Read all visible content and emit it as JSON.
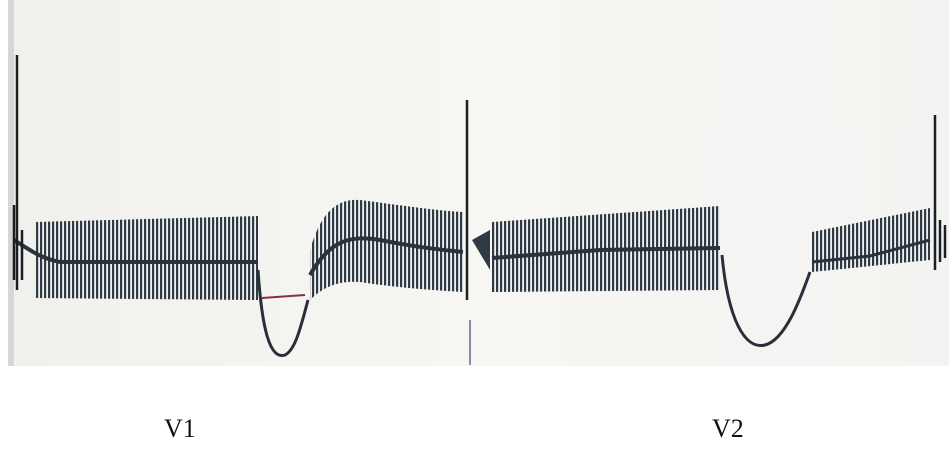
{
  "captions": [
    "V1",
    "V2"
  ]
}
